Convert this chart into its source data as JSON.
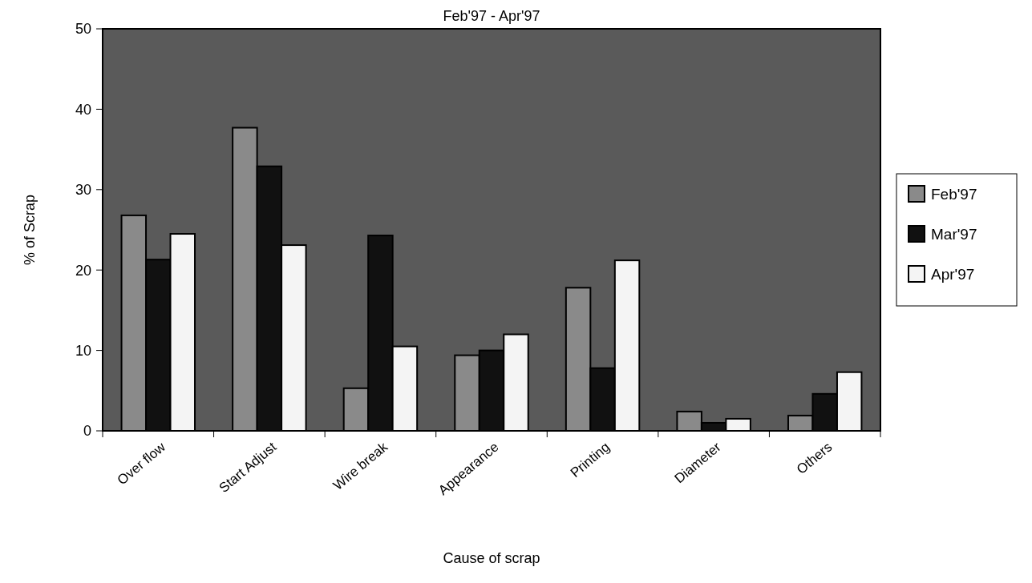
{
  "chart_data": {
    "type": "bar",
    "title": "Feb'97 - Apr'97",
    "xlabel": "Cause of scrap",
    "ylabel": "% of Scrap",
    "categories": [
      "Over flow",
      "Start Adjust",
      "Wire break",
      "Appearance",
      "Printing",
      "Diameter",
      "Others"
    ],
    "series": [
      {
        "name": "Feb'97",
        "color": "#8a8a8a",
        "values": [
          26.8,
          37.7,
          5.3,
          9.4,
          17.8,
          2.4,
          1.9
        ]
      },
      {
        "name": "Mar'97",
        "color": "#111111",
        "values": [
          21.3,
          32.9,
          24.3,
          10.0,
          7.8,
          1.0,
          4.6
        ]
      },
      {
        "name": "Apr'97",
        "color": "#f4f4f4",
        "values": [
          24.5,
          23.1,
          10.5,
          12.0,
          21.2,
          1.5,
          7.3
        ]
      }
    ],
    "ylim": [
      0,
      50
    ],
    "yticks": [
      0,
      10,
      20,
      30,
      40,
      50
    ],
    "legend": "right",
    "grid": false
  }
}
